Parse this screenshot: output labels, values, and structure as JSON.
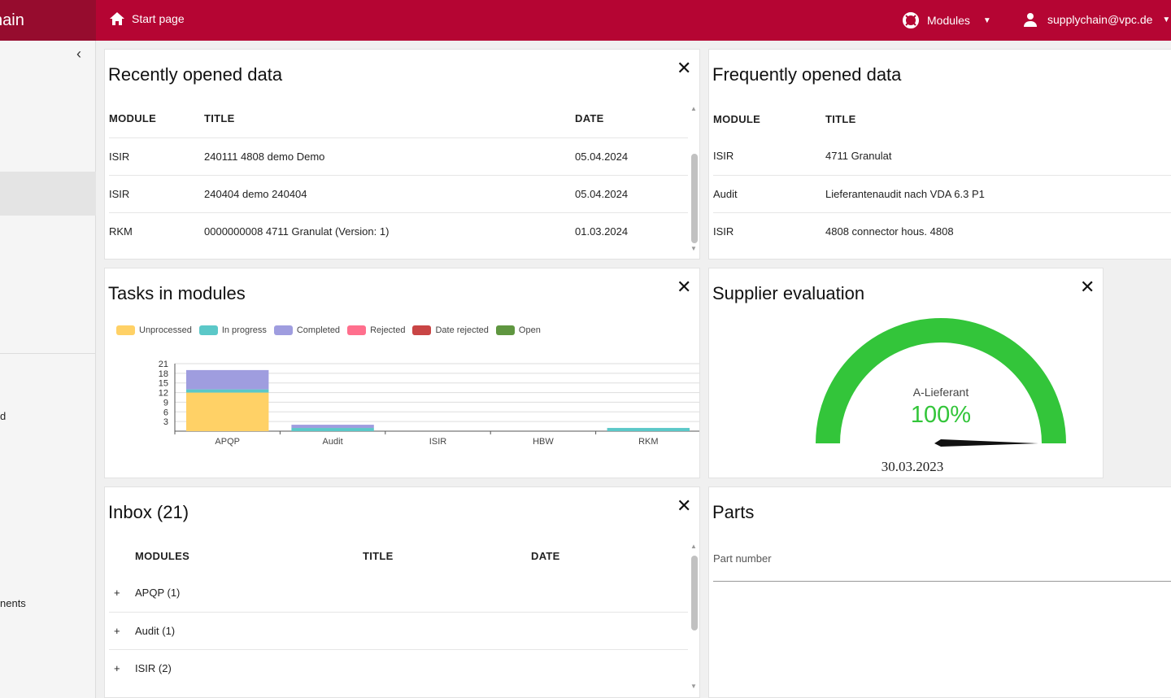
{
  "header": {
    "brand": "hain",
    "start_page": "Start page",
    "modules": "Modules",
    "user": "supplychain@vpc.de"
  },
  "sidebar": {
    "items": [
      {
        "label": "d"
      },
      {
        "label": "nents"
      }
    ]
  },
  "recent": {
    "title": "Recently opened data",
    "columns": [
      "MODULE",
      "TITLE",
      "DATE"
    ],
    "rows": [
      [
        "ISIR",
        "240111 4808 demo Demo",
        "05.04.2024"
      ],
      [
        "ISIR",
        "240404 demo 240404",
        "05.04.2024"
      ],
      [
        "RKM",
        "0000000008 4711 Granulat (Version: 1)",
        "01.03.2024"
      ]
    ]
  },
  "frequent": {
    "title": "Frequently opened data",
    "columns": [
      "MODULE",
      "TITLE"
    ],
    "rows": [
      [
        "ISIR",
        "4711 Granulat"
      ],
      [
        "Audit",
        "Lieferantenaudit nach VDA 6.3 P1"
      ],
      [
        "ISIR",
        "4808 connector hous. 4808"
      ]
    ]
  },
  "tasks": {
    "title": "Tasks in modules"
  },
  "chart_data": {
    "type": "bar",
    "stacked": true,
    "title": "Tasks in modules",
    "categories": [
      "APQP",
      "Audit",
      "ISIR",
      "HBW",
      "RKM"
    ],
    "ylim": [
      0,
      21
    ],
    "yticks": [
      3,
      6,
      9,
      12,
      15,
      18,
      21
    ],
    "legend": "top-left",
    "series": [
      {
        "name": "Unprocessed",
        "color": "#ffd166",
        "values": [
          12,
          0,
          0,
          0,
          0
        ]
      },
      {
        "name": "In progress",
        "color": "#5bc8c8",
        "values": [
          1,
          1,
          0,
          0,
          1
        ]
      },
      {
        "name": "Completed",
        "color": "#9f9ddf",
        "values": [
          6,
          1,
          0,
          0,
          0
        ]
      },
      {
        "name": "Rejected",
        "color": "#ff6f8d",
        "values": [
          0,
          0,
          0,
          0,
          0
        ]
      },
      {
        "name": "Date rejected",
        "color": "#c94545",
        "values": [
          0,
          0,
          0,
          0,
          0
        ]
      },
      {
        "name": "Open",
        "color": "#5f9640",
        "values": [
          0,
          0,
          0,
          0,
          0
        ]
      }
    ]
  },
  "supplier": {
    "title": "Supplier evaluation",
    "rating": "A-Lieferant",
    "percent_label": "100%",
    "percent": 100,
    "date": "30.03.2023",
    "color": "#33c53a"
  },
  "inbox": {
    "title": "Inbox (21)",
    "columns": [
      "MODULES",
      "TITLE",
      "DATE"
    ],
    "rows": [
      {
        "expand": "+",
        "label": "APQP (1)"
      },
      {
        "expand": "+",
        "label": "Audit (1)"
      },
      {
        "expand": "+",
        "label": "ISIR (2)"
      }
    ]
  },
  "parts": {
    "title": "Parts",
    "field_label": "Part number"
  },
  "close_symbol": "✕"
}
